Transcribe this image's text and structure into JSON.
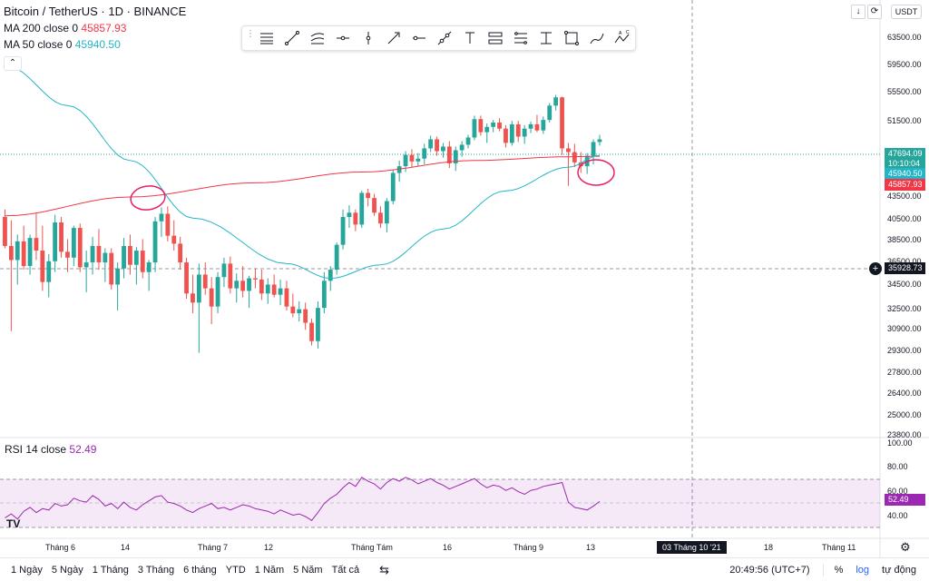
{
  "legend": {
    "title": "Bitcoin / TetherUS · 1D · BINANCE",
    "ma200": {
      "label": "MA 200 close 0",
      "value": "45857.93",
      "color": "#f23645"
    },
    "ma50": {
      "label": "MA 50 close 0",
      "value": "45940.50",
      "color": "#22b5c7"
    },
    "collapse_icon": "chevron-up-icon"
  },
  "toolbar": {
    "icons": [
      "horizontal-lines-icon",
      "trend-line-icon",
      "channel-icon",
      "horizontal-ray-icon",
      "vertical-line-icon",
      "arrow-icon",
      "info-line-icon",
      "extended-line-icon",
      "text-icon",
      "price-range-icon",
      "date-range-icon",
      "price-note-icon",
      "rectangle-icon",
      "brush-icon",
      "abc-pattern-icon"
    ]
  },
  "top_buttons": {
    "arrow": "↓",
    "refresh": "⟳",
    "currency": "USDT"
  },
  "price_axis": {
    "labels": [
      "63500.00",
      "59500.00",
      "55500.00",
      "51500.00",
      "43500.00",
      "40500.00",
      "38500.00",
      "36500.00",
      "34500.00",
      "32500.00",
      "30900.00",
      "29300.00",
      "27800.00",
      "26400.00",
      "25000.00",
      "23800.00"
    ],
    "tags": {
      "last_price": "47694.09",
      "countdown": "10:10:04",
      "ma50": "45940.50",
      "ma200": "45857.93",
      "crosshair": "35928.73"
    }
  },
  "rsi": {
    "label": "RSI 14 close",
    "value": "52.49",
    "axis": [
      "100.00",
      "80.00",
      "60.00",
      "40.00"
    ],
    "color": "#9c27b0"
  },
  "time_axis": {
    "labels": [
      "Tháng 6",
      "14",
      "Tháng 7",
      "12",
      "Tháng Tám",
      "16",
      "Tháng 9",
      "13",
      "18",
      "Tháng 11"
    ],
    "crosshair_date": "03 Tháng 10 '21"
  },
  "bottom_bar": {
    "ranges": [
      "1 Ngày",
      "5 Ngày",
      "1 Tháng",
      "3 Tháng",
      "6 tháng",
      "YTD",
      "1 Năm",
      "5 Năm",
      "Tất cả"
    ],
    "time": "20:49:56 (UTC+7)",
    "percent": "%",
    "log": "log",
    "auto": "tự động"
  },
  "chart_data": {
    "type": "candlestick",
    "symbol": "Bitcoin / TetherUS",
    "interval": "1D",
    "exchange": "BINANCE",
    "colors": {
      "up": "#26a69a",
      "down": "#ef5350",
      "ma200": "#f23645",
      "ma50": "#22b5c7",
      "rsi": "#9c27b0"
    },
    "ylim": [
      23800,
      66000
    ],
    "candles": [
      [
        39800,
        40500,
        37000,
        37200
      ],
      [
        37200,
        39500,
        30500,
        36000
      ],
      [
        36000,
        38200,
        34000,
        37600
      ],
      [
        37600,
        39000,
        35200,
        35500
      ],
      [
        35500,
        38200,
        34800,
        37900
      ],
      [
        37900,
        40200,
        36000,
        36800
      ],
      [
        36800,
        39000,
        33500,
        34200
      ],
      [
        34200,
        36500,
        33000,
        35900
      ],
      [
        35900,
        40000,
        35000,
        39300
      ],
      [
        39300,
        39800,
        36200,
        36700
      ],
      [
        36700,
        37800,
        35000,
        36200
      ],
      [
        36200,
        39000,
        35500,
        38800
      ],
      [
        38800,
        39200,
        35000,
        35400
      ],
      [
        35400,
        36800,
        33400,
        35800
      ],
      [
        35800,
        38000,
        34800,
        37200
      ],
      [
        37200,
        38700,
        35200,
        35800
      ],
      [
        35800,
        37000,
        34200,
        36600
      ],
      [
        36600,
        37000,
        33600,
        34000
      ],
      [
        34000,
        35800,
        32000,
        35300
      ],
      [
        35300,
        37900,
        34500,
        37200
      ],
      [
        37200,
        38200,
        34800,
        35600
      ],
      [
        35600,
        37100,
        34000,
        36800
      ],
      [
        36800,
        37800,
        34500,
        35000
      ],
      [
        35000,
        36000,
        33500,
        35800
      ],
      [
        35800,
        39800,
        35000,
        39400
      ],
      [
        39400,
        40700,
        38000,
        40100
      ],
      [
        40100,
        40800,
        37600,
        38100
      ],
      [
        38100,
        39500,
        36800,
        37400
      ],
      [
        37400,
        38000,
        35200,
        35800
      ],
      [
        35800,
        36200,
        32900,
        33300
      ],
      [
        33300,
        34800,
        31800,
        32600
      ],
      [
        32600,
        35700,
        29000,
        34800
      ],
      [
        34800,
        35800,
        33200,
        33700
      ],
      [
        33700,
        34600,
        31000,
        32300
      ],
      [
        32300,
        35000,
        31800,
        34600
      ],
      [
        34600,
        36200,
        33800,
        35700
      ],
      [
        35700,
        36300,
        33300,
        33700
      ],
      [
        33700,
        34900,
        32600,
        34300
      ],
      [
        34300,
        35500,
        33000,
        33500
      ],
      [
        33500,
        34700,
        32200,
        34500
      ],
      [
        34500,
        35300,
        33700,
        34400
      ],
      [
        34400,
        35200,
        32800,
        33300
      ],
      [
        33300,
        34500,
        32500,
        34000
      ],
      [
        34000,
        34800,
        33000,
        33200
      ],
      [
        33200,
        34400,
        32400,
        33700
      ],
      [
        33700,
        34300,
        32000,
        32300
      ],
      [
        32300,
        33300,
        31500,
        31800
      ],
      [
        31800,
        32700,
        31200,
        32100
      ],
      [
        32100,
        32600,
        30600,
        31100
      ],
      [
        31100,
        31400,
        29500,
        29800
      ],
      [
        29800,
        32700,
        29300,
        32200
      ],
      [
        32200,
        35000,
        31800,
        34300
      ],
      [
        34300,
        35500,
        33500,
        35200
      ],
      [
        35200,
        37500,
        34800,
        37300
      ],
      [
        37300,
        40500,
        36900,
        39800
      ],
      [
        39800,
        40900,
        38800,
        40200
      ],
      [
        40200,
        40500,
        38500,
        39100
      ],
      [
        39100,
        42300,
        38800,
        42100
      ],
      [
        42100,
        42500,
        40800,
        41600
      ],
      [
        41600,
        42000,
        39900,
        40200
      ],
      [
        40200,
        40800,
        38800,
        39200
      ],
      [
        39200,
        41600,
        38400,
        41300
      ],
      [
        41300,
        44400,
        41000,
        44100
      ],
      [
        44100,
        45400,
        43200,
        44800
      ],
      [
        44800,
        46400,
        44200,
        46000
      ],
      [
        46000,
        46600,
        44700,
        45300
      ],
      [
        45300,
        46200,
        44800,
        45600
      ],
      [
        45600,
        47200,
        45000,
        46700
      ],
      [
        46700,
        48100,
        46300,
        47700
      ],
      [
        47700,
        48000,
        45900,
        46400
      ],
      [
        46400,
        47300,
        45700,
        46900
      ],
      [
        46900,
        47500,
        44600,
        45100
      ],
      [
        45100,
        46900,
        44300,
        46500
      ],
      [
        46500,
        47500,
        45800,
        47100
      ],
      [
        47100,
        48200,
        46700,
        47900
      ],
      [
        47900,
        50400,
        47600,
        50000
      ],
      [
        50000,
        50400,
        48100,
        48500
      ],
      [
        48500,
        49500,
        47300,
        49100
      ],
      [
        49100,
        49900,
        48500,
        49600
      ],
      [
        49600,
        50100,
        48600,
        48900
      ],
      [
        48900,
        49300,
        46800,
        47300
      ],
      [
        47300,
        49800,
        47000,
        49400
      ],
      [
        49400,
        49800,
        47400,
        48000
      ],
      [
        48000,
        49300,
        47200,
        48900
      ],
      [
        48900,
        49700,
        48400,
        49400
      ],
      [
        49400,
        50500,
        48500,
        48700
      ],
      [
        48700,
        50300,
        48300,
        49900
      ],
      [
        49900,
        51900,
        49600,
        51600
      ],
      [
        51600,
        52900,
        51000,
        52600
      ],
      [
        52600,
        52700,
        46000,
        46700
      ],
      [
        46700,
        47300,
        42800,
        46300
      ],
      [
        46300,
        47200,
        44700,
        45200
      ],
      [
        45200,
        46300,
        44100,
        44800
      ],
      [
        44800,
        46200,
        44000,
        45900
      ],
      [
        45900,
        47700,
        45000,
        47400
      ],
      [
        47400,
        48200,
        47000,
        47694
      ]
    ],
    "ma200": [
      [
        0,
        39900
      ],
      [
        20,
        41700
      ],
      [
        40,
        43100
      ],
      [
        57,
        44200
      ],
      [
        75,
        45400
      ],
      [
        90,
        45800
      ],
      [
        95,
        45858
      ]
    ],
    "ma50": [
      [
        0,
        56700
      ],
      [
        10,
        51600
      ],
      [
        20,
        45400
      ],
      [
        30,
        39700
      ],
      [
        45,
        35700
      ],
      [
        52,
        34500
      ],
      [
        60,
        35600
      ],
      [
        70,
        38700
      ],
      [
        80,
        42300
      ],
      [
        90,
        44700
      ],
      [
        95,
        45940
      ]
    ],
    "rsi": [
      40,
      43,
      39,
      45,
      48,
      44,
      47,
      46,
      51,
      49,
      50,
      55,
      53,
      52,
      57,
      54,
      49,
      51,
      47,
      52,
      48,
      46,
      50,
      53,
      56,
      57,
      52,
      51,
      49,
      46,
      44,
      47,
      49,
      51,
      47,
      48,
      46,
      48,
      50,
      49,
      47,
      46,
      45,
      43,
      46,
      44,
      42,
      43,
      41,
      38,
      44,
      51,
      55,
      58,
      63,
      67,
      64,
      71,
      68,
      66,
      62,
      67,
      70,
      68,
      71,
      69,
      66,
      68,
      70,
      67,
      65,
      62,
      64,
      66,
      68,
      70,
      66,
      63,
      65,
      64,
      61,
      63,
      60,
      58,
      61,
      62,
      64,
      65,
      66,
      67,
      52,
      48,
      47,
      46,
      49,
      52.49
    ],
    "rsi_ylim": [
      25,
      100
    ],
    "annotations": [
      "circle-ma-cross-july",
      "circle-ma-cross-september"
    ]
  }
}
